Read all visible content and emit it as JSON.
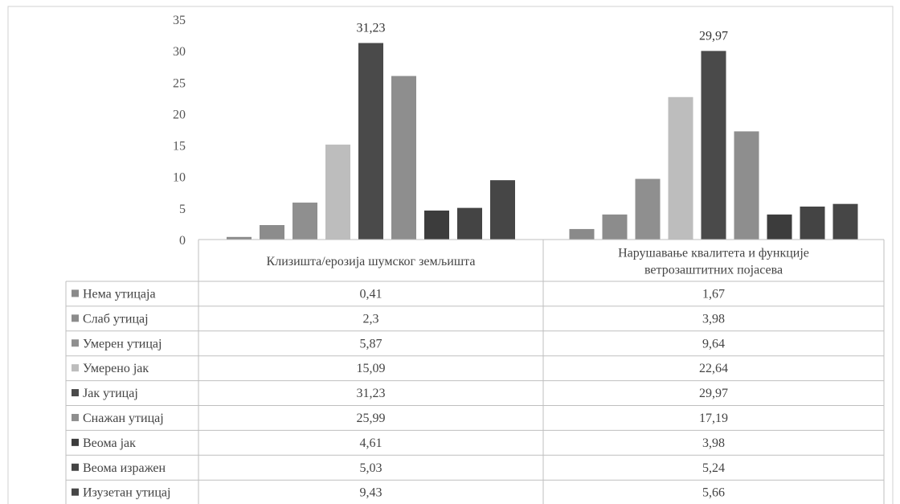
{
  "chart_data": {
    "type": "bar",
    "y_ticks": [
      "0",
      "5",
      "10",
      "15",
      "20",
      "25",
      "30",
      "35"
    ],
    "ylim": [
      0,
      35
    ],
    "grid": false,
    "legend": "data-table",
    "categories": [
      "Клизишта/ерозија шумског земљишта",
      "Нарушавање квалитета и функције ветрозаштитних појасева"
    ],
    "category_lines": [
      [
        "Клизишта/ерозија шумског земљишта"
      ],
      [
        "Нарушавање квалитета и функције",
        "ветрозаштитних појасева"
      ]
    ],
    "series": [
      {
        "name": "Нема утицаја",
        "values": [
          0.41,
          1.67
        ],
        "labels": [
          "0,41",
          "1,67"
        ],
        "color": "#8a8a8a"
      },
      {
        "name": "Слаб утицај",
        "values": [
          2.3,
          3.98
        ],
        "labels": [
          "2,3",
          "3,98"
        ],
        "color": "#8c8c8c"
      },
      {
        "name": "Умерен утицај",
        "values": [
          5.87,
          9.64
        ],
        "labels": [
          "5,87",
          "9,64"
        ],
        "color": "#8f8f8f"
      },
      {
        "name": "Умерено јак",
        "values": [
          15.09,
          22.64
        ],
        "labels": [
          "15,09",
          "22,64"
        ],
        "color": "#bdbdbd"
      },
      {
        "name": "Јак утицај",
        "values": [
          31.23,
          29.97
        ],
        "labels": [
          "31,23",
          "29,97"
        ],
        "color": "#4a4a4a"
      },
      {
        "name": "Снажан  утицај",
        "values": [
          25.99,
          17.19
        ],
        "labels": [
          "25,99",
          "17,19"
        ],
        "color": "#8e8e8e"
      },
      {
        "name": "Веома јак",
        "values": [
          4.61,
          3.98
        ],
        "labels": [
          "4,61",
          "3,98"
        ],
        "color": "#3c3c3c"
      },
      {
        "name": "Веома изражен",
        "values": [
          5.03,
          5.24
        ],
        "labels": [
          "5,03",
          "5,24"
        ],
        "color": "#444444"
      },
      {
        "name": "Изузетан утицај",
        "values": [
          9.43,
          5.66
        ],
        "labels": [
          "9,43",
          "5,66"
        ],
        "color": "#464646"
      }
    ],
    "data_labels": [
      {
        "series": "Јак утицај",
        "category": 0,
        "text": "31,23"
      },
      {
        "series": "Јак утицај",
        "category": 1,
        "text": "29,97"
      }
    ]
  }
}
